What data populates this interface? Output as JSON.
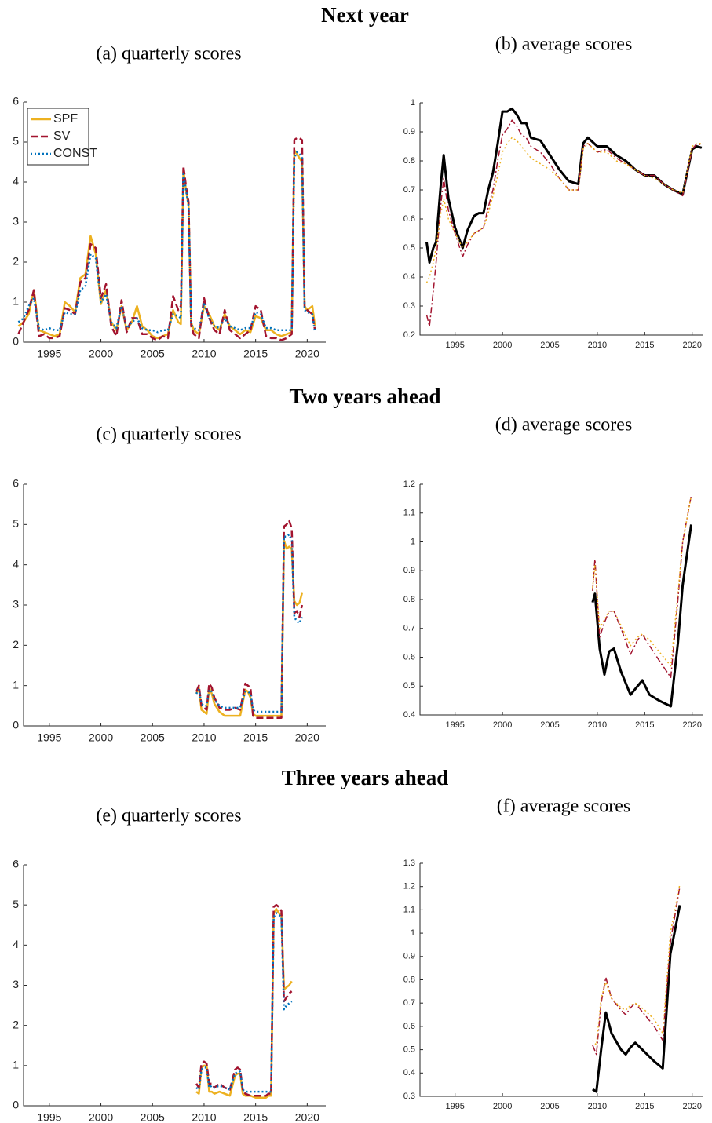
{
  "headings": [
    "Next year",
    "Two years ahead",
    "Three years ahead"
  ],
  "chart_data": [
    {
      "type": "line",
      "title": "(a) quarterly scores",
      "x": [
        1992,
        1992.5,
        1993,
        1993.5,
        1994,
        1994.5,
        1995,
        1995.5,
        1996,
        1996.5,
        1997,
        1997.5,
        1998,
        1998.5,
        1999,
        1999.5,
        2000,
        2000.5,
        2001,
        2001.5,
        2002,
        2002.5,
        2003,
        2003.5,
        2004,
        2004.5,
        2005,
        2005.5,
        2006,
        2006.5,
        2007,
        2007.5,
        2007.75,
        2008,
        2008.25,
        2008.5,
        2008.75,
        2009,
        2009.5,
        2010,
        2010.5,
        2011,
        2011.5,
        2012,
        2012.5,
        2013,
        2013.5,
        2014,
        2014.5,
        2015,
        2015.5,
        2016,
        2016.5,
        2017,
        2017.5,
        2018,
        2018.5,
        2018.75,
        2019,
        2019.25,
        2019.5,
        2019.75,
        2020,
        2020.5,
        2020.75
      ],
      "series": [
        {
          "name": "SPF",
          "color": "#EDB120",
          "style": "solid",
          "linewidth": 2.5,
          "values": [
            0.4,
            0.5,
            0.7,
            1.3,
            0.3,
            0.25,
            0.2,
            0.15,
            0.2,
            1.0,
            0.9,
            0.75,
            1.6,
            1.7,
            2.65,
            2.2,
            0.95,
            1.3,
            0.5,
            0.3,
            0.9,
            0.3,
            0.5,
            0.9,
            0.4,
            0.3,
            0.15,
            0.1,
            0.15,
            0.2,
            0.8,
            0.5,
            0.45,
            4.3,
            3.8,
            3.4,
            0.5,
            0.3,
            0.2,
            0.9,
            0.7,
            0.4,
            0.3,
            0.7,
            0.4,
            0.3,
            0.2,
            0.3,
            0.25,
            0.65,
            0.6,
            0.3,
            0.3,
            0.2,
            0.15,
            0.2,
            0.25,
            4.8,
            4.7,
            4.6,
            4.5,
            0.9,
            0.8,
            0.9,
            0.4
          ]
        },
        {
          "name": "SV",
          "color": "#A2142F",
          "style": "dashed",
          "linewidth": 2.5,
          "values": [
            0.2,
            0.5,
            0.8,
            1.3,
            0.15,
            0.2,
            0.1,
            0.1,
            0.15,
            0.85,
            0.8,
            0.7,
            1.5,
            1.6,
            2.45,
            2.35,
            1.1,
            1.45,
            0.4,
            0.15,
            1.05,
            0.25,
            0.6,
            0.6,
            0.2,
            0.2,
            0.1,
            0.05,
            0.15,
            0.1,
            1.15,
            0.8,
            0.9,
            4.4,
            3.9,
            3.5,
            0.4,
            0.2,
            0.1,
            1.1,
            0.6,
            0.3,
            0.2,
            0.8,
            0.3,
            0.2,
            0.1,
            0.2,
            0.3,
            0.9,
            0.8,
            0.15,
            0.1,
            0.1,
            0.05,
            0.1,
            0.2,
            5.05,
            5.1,
            5.1,
            5.05,
            0.85,
            0.8,
            0.7,
            0.3
          ]
        },
        {
          "name": "CONST",
          "color": "#0072BD",
          "style": "dotted",
          "linewidth": 2.5,
          "values": [
            0.5,
            0.6,
            0.9,
            1.1,
            0.35,
            0.3,
            0.35,
            0.3,
            0.3,
            0.75,
            0.7,
            0.7,
            1.3,
            1.4,
            2.2,
            2.1,
            1.0,
            1.2,
            0.5,
            0.35,
            0.9,
            0.35,
            0.5,
            0.6,
            0.35,
            0.3,
            0.3,
            0.25,
            0.3,
            0.3,
            0.7,
            0.65,
            0.6,
            4.2,
            3.8,
            3.4,
            0.45,
            0.35,
            0.3,
            0.95,
            0.6,
            0.4,
            0.35,
            0.6,
            0.4,
            0.35,
            0.3,
            0.35,
            0.35,
            0.75,
            0.7,
            0.35,
            0.35,
            0.3,
            0.3,
            0.3,
            0.3,
            4.6,
            4.75,
            4.7,
            4.6,
            0.8,
            0.75,
            0.7,
            0.25
          ]
        }
      ],
      "xlim": [
        1992.5,
        2021.8
      ],
      "xticks": [
        1995,
        2000,
        2005,
        2010,
        2015,
        2020
      ],
      "ylim": [
        0,
        6
      ],
      "yticks": [
        0,
        1,
        2,
        3,
        4,
        5,
        6
      ],
      "legend": "upper left"
    },
    {
      "type": "line",
      "title": "(b) average scores",
      "x": [
        1992,
        1992.3,
        1992.7,
        1993,
        1993.5,
        1993.8,
        1994.3,
        1995,
        1995.8,
        1996.3,
        1997,
        1997.5,
        1998,
        1998.5,
        1999,
        1999.5,
        2000,
        2000.5,
        2001,
        2001.5,
        2002,
        2002.5,
        2003,
        2004,
        2005,
        2006,
        2007,
        2008,
        2008.5,
        2009,
        2010,
        2011,
        2012,
        2013,
        2014,
        2015,
        2016,
        2017,
        2018,
        2019,
        2020,
        2020.5,
        2021
      ],
      "series": [
        {
          "color": "#000000",
          "style": "solid",
          "linewidth": 3,
          "values": [
            0.52,
            0.45,
            0.5,
            0.52,
            0.72,
            0.82,
            0.67,
            0.57,
            0.5,
            0.56,
            0.61,
            0.62,
            0.62,
            0.7,
            0.76,
            0.86,
            0.97,
            0.97,
            0.98,
            0.96,
            0.93,
            0.93,
            0.88,
            0.87,
            0.82,
            0.77,
            0.73,
            0.72,
            0.86,
            0.88,
            0.85,
            0.85,
            0.82,
            0.8,
            0.77,
            0.75,
            0.75,
            0.72,
            0.7,
            0.685,
            0.84,
            0.85,
            0.845
          ]
        },
        {
          "color": "#A2142F",
          "style": "dashdot",
          "linewidth": 1.5,
          "values": [
            0.27,
            0.23,
            0.35,
            0.45,
            0.65,
            0.74,
            0.63,
            0.55,
            0.47,
            0.51,
            0.55,
            0.56,
            0.57,
            0.64,
            0.7,
            0.8,
            0.89,
            0.91,
            0.94,
            0.92,
            0.89,
            0.88,
            0.85,
            0.83,
            0.79,
            0.74,
            0.7,
            0.7,
            0.85,
            0.86,
            0.83,
            0.84,
            0.81,
            0.79,
            0.77,
            0.75,
            0.75,
            0.72,
            0.7,
            0.68,
            0.84,
            0.86,
            0.855
          ]
        },
        {
          "color": "#EDB120",
          "style": "dotted",
          "linewidth": 1.5,
          "values": [
            0.38,
            0.4,
            0.45,
            0.5,
            0.62,
            0.67,
            0.6,
            0.55,
            0.5,
            0.52,
            0.55,
            0.56,
            0.57,
            0.62,
            0.68,
            0.75,
            0.83,
            0.86,
            0.88,
            0.87,
            0.85,
            0.83,
            0.81,
            0.79,
            0.77,
            0.74,
            0.7,
            0.7,
            0.84,
            0.86,
            0.83,
            0.83,
            0.8,
            0.79,
            0.77,
            0.75,
            0.74,
            0.72,
            0.7,
            0.69,
            0.85,
            0.86,
            0.86
          ]
        }
      ],
      "xlim": [
        1991.3,
        2021.1
      ],
      "xticks": [
        1995,
        2000,
        2005,
        2010,
        2015,
        2020
      ],
      "ylim": [
        0.2,
        1
      ],
      "yticks": [
        0.2,
        0.3,
        0.4,
        0.5,
        0.6,
        0.7,
        0.8,
        0.9,
        1
      ]
    },
    {
      "type": "line",
      "title": "(c) quarterly scores",
      "x": [
        2009.25,
        2009.5,
        2009.75,
        2010,
        2010.25,
        2010.5,
        2010.75,
        2011,
        2011.5,
        2012,
        2012.5,
        2013,
        2013.5,
        2014,
        2014.25,
        2014.5,
        2014.75,
        2015,
        2015.5,
        2016,
        2016.5,
        2017,
        2017.5,
        2017.75,
        2018,
        2018.25,
        2018.5,
        2018.75,
        2019,
        2019.25,
        2019.5
      ],
      "series": [
        {
          "color": "#EDB120",
          "style": "solid",
          "linewidth": 2.5,
          "values": [
            0.8,
            0.95,
            0.4,
            0.35,
            0.3,
            0.95,
            0.8,
            0.55,
            0.35,
            0.25,
            0.25,
            0.25,
            0.25,
            0.9,
            0.85,
            0.7,
            0.3,
            0.25,
            0.25,
            0.25,
            0.25,
            0.25,
            0.25,
            4.6,
            4.4,
            4.45,
            4.4,
            3.1,
            3.0,
            3.05,
            3.3
          ]
        },
        {
          "color": "#A2142F",
          "style": "dashed",
          "linewidth": 2.5,
          "values": [
            0.85,
            1.0,
            0.5,
            0.45,
            0.4,
            1.05,
            0.95,
            0.7,
            0.45,
            0.4,
            0.4,
            0.45,
            0.4,
            1.05,
            1.0,
            0.95,
            0.25,
            0.2,
            0.2,
            0.2,
            0.2,
            0.2,
            0.2,
            4.95,
            5.0,
            5.1,
            4.9,
            2.8,
            2.85,
            2.7,
            3.0
          ]
        },
        {
          "color": "#0072BD",
          "style": "dotted",
          "linewidth": 2.5,
          "values": [
            0.8,
            0.9,
            0.55,
            0.5,
            0.5,
            0.9,
            0.85,
            0.65,
            0.5,
            0.45,
            0.45,
            0.45,
            0.45,
            0.85,
            0.85,
            0.8,
            0.4,
            0.35,
            0.35,
            0.35,
            0.35,
            0.35,
            0.35,
            4.7,
            4.7,
            4.75,
            4.6,
            2.7,
            2.6,
            2.55,
            2.7
          ]
        }
      ],
      "xlim": [
        1992.5,
        2021.8
      ],
      "xticks": [
        1995,
        2000,
        2005,
        2010,
        2015,
        2020
      ],
      "ylim": [
        0,
        6
      ],
      "yticks": [
        0,
        1,
        2,
        3,
        4,
        5,
        6
      ]
    },
    {
      "type": "line",
      "title": "(d) average scores",
      "x": [
        2009.5,
        2009.75,
        2010.25,
        2010.75,
        2011.25,
        2011.75,
        2012.5,
        2013.5,
        2014.25,
        2014.75,
        2015.5,
        2016.5,
        2017.75,
        2018.5,
        2019,
        2019.9
      ],
      "series": [
        {
          "color": "#000000",
          "style": "solid",
          "linewidth": 3,
          "values": [
            0.79,
            0.82,
            0.63,
            0.54,
            0.62,
            0.63,
            0.55,
            0.47,
            0.5,
            0.52,
            0.47,
            0.45,
            0.43,
            0.65,
            0.85,
            1.06
          ]
        },
        {
          "color": "#A2142F",
          "style": "dashdot",
          "linewidth": 1.5,
          "values": [
            0.83,
            0.94,
            0.67,
            0.72,
            0.76,
            0.76,
            0.7,
            0.61,
            0.66,
            0.68,
            0.64,
            0.59,
            0.53,
            0.8,
            1.0,
            1.16
          ]
        },
        {
          "color": "#EDB120",
          "style": "dotted",
          "linewidth": 1.5,
          "values": [
            0.84,
            0.92,
            0.7,
            0.73,
            0.76,
            0.76,
            0.71,
            0.64,
            0.67,
            0.68,
            0.66,
            0.62,
            0.57,
            0.82,
            1.0,
            1.16
          ]
        }
      ],
      "xlim": [
        1991.3,
        2021.1
      ],
      "xticks": [
        1995,
        2000,
        2005,
        2010,
        2015,
        2020
      ],
      "ylim": [
        0.4,
        1.2
      ],
      "yticks": [
        0.4,
        0.5,
        0.6,
        0.7,
        0.8,
        0.9,
        1,
        1.1,
        1.2
      ]
    },
    {
      "type": "line",
      "title": "(e) quarterly scores",
      "x": [
        2009.25,
        2009.5,
        2009.75,
        2010,
        2010.25,
        2010.5,
        2010.75,
        2011,
        2011.5,
        2012,
        2012.5,
        2013,
        2013.25,
        2013.5,
        2013.75,
        2014,
        2014.5,
        2015,
        2015.5,
        2016,
        2016.25,
        2016.5,
        2016.75,
        2017,
        2017.25,
        2017.5,
        2017.75,
        2018,
        2018.25,
        2018.5
      ],
      "series": [
        {
          "color": "#EDB120",
          "style": "solid",
          "linewidth": 2.5,
          "values": [
            0.35,
            0.3,
            0.95,
            1.0,
            1.0,
            0.35,
            0.35,
            0.3,
            0.35,
            0.3,
            0.25,
            0.75,
            0.8,
            0.8,
            0.3,
            0.25,
            0.25,
            0.2,
            0.2,
            0.2,
            0.25,
            0.25,
            4.8,
            4.9,
            4.8,
            4.75,
            2.9,
            2.95,
            3.0,
            3.1
          ]
        },
        {
          "color": "#A2142F",
          "style": "dashed",
          "linewidth": 2.5,
          "values": [
            0.55,
            0.45,
            1.05,
            1.1,
            1.05,
            0.55,
            0.55,
            0.45,
            0.55,
            0.45,
            0.4,
            0.9,
            0.95,
            0.9,
            0.4,
            0.3,
            0.25,
            0.25,
            0.25,
            0.25,
            0.3,
            0.3,
            4.95,
            5.0,
            4.95,
            4.85,
            2.6,
            2.7,
            2.8,
            2.85
          ]
        },
        {
          "color": "#0072BD",
          "style": "dotted",
          "linewidth": 2.5,
          "values": [
            0.45,
            0.4,
            0.9,
            0.95,
            0.95,
            0.45,
            0.5,
            0.45,
            0.5,
            0.45,
            0.4,
            0.8,
            0.85,
            0.85,
            0.4,
            0.35,
            0.35,
            0.35,
            0.35,
            0.35,
            0.35,
            0.35,
            4.7,
            4.8,
            4.75,
            4.7,
            2.4,
            2.5,
            2.55,
            2.6
          ]
        }
      ],
      "xlim": [
        1992.5,
        2021.8
      ],
      "xticks": [
        1995,
        2000,
        2005,
        2010,
        2015,
        2020
      ],
      "ylim": [
        0,
        6
      ],
      "yticks": [
        0,
        1,
        2,
        3,
        4,
        5,
        6
      ]
    },
    {
      "type": "line",
      "title": "(f) average scores",
      "x": [
        2009.5,
        2009.9,
        2010.4,
        2010.9,
        2011.5,
        2012.5,
        2013,
        2013.5,
        2014,
        2015,
        2016,
        2016.9,
        2017.7,
        2018.7
      ],
      "series": [
        {
          "color": "#000000",
          "style": "solid",
          "linewidth": 3,
          "values": [
            0.33,
            0.32,
            0.5,
            0.66,
            0.57,
            0.5,
            0.48,
            0.51,
            0.53,
            0.49,
            0.45,
            0.42,
            0.91,
            1.12
          ]
        },
        {
          "color": "#A2142F",
          "style": "dashdot",
          "linewidth": 1.5,
          "values": [
            0.52,
            0.48,
            0.7,
            0.81,
            0.72,
            0.67,
            0.65,
            0.68,
            0.7,
            0.65,
            0.6,
            0.54,
            0.96,
            1.2
          ]
        },
        {
          "color": "#EDB120",
          "style": "dotted",
          "linewidth": 1.5,
          "values": [
            0.54,
            0.52,
            0.72,
            0.79,
            0.72,
            0.68,
            0.67,
            0.69,
            0.7,
            0.67,
            0.63,
            0.57,
            1.0,
            1.21
          ]
        }
      ],
      "xlim": [
        1991.3,
        2021.1
      ],
      "xticks": [
        1995,
        2000,
        2005,
        2010,
        2015,
        2020
      ],
      "ylim": [
        0.3,
        1.3
      ],
      "yticks": [
        0.3,
        0.4,
        0.5,
        0.6,
        0.7,
        0.8,
        0.9,
        1,
        1.1,
        1.2,
        1.3
      ]
    }
  ]
}
